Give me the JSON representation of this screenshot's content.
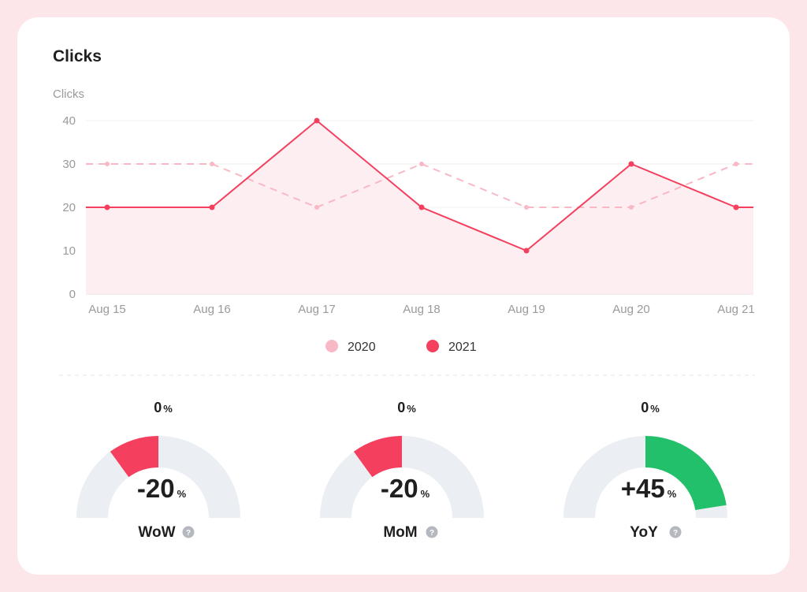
{
  "card": {
    "title": "Clicks"
  },
  "chart_data": {
    "type": "line",
    "ylabel": "Clicks",
    "categories": [
      "Aug 15",
      "Aug 16",
      "Aug 17",
      "Aug 18",
      "Aug 19",
      "Aug 20",
      "Aug 21"
    ],
    "yticks": [
      0,
      10,
      20,
      30,
      40
    ],
    "ylim": [
      0,
      40
    ],
    "grid": true,
    "legend_position": "bottom-center",
    "series": [
      {
        "name": "2020",
        "values": [
          30,
          30,
          20,
          30,
          20,
          20,
          30
        ],
        "style": "dashed",
        "color": "#f9b8c5"
      },
      {
        "name": "2021",
        "values": [
          20,
          20,
          40,
          20,
          10,
          30,
          20
        ],
        "style": "solid",
        "color": "#f43f5e",
        "fill": "#fdeef1"
      }
    ]
  },
  "gauges": [
    {
      "label": "WoW",
      "value": "-20",
      "unit": "%",
      "start_value": "0",
      "start_unit": "%",
      "fraction": -0.2,
      "color": "#f43f5e",
      "help_icon": "help-circle-icon"
    },
    {
      "label": "MoM",
      "value": "-20",
      "unit": "%",
      "start_value": "0",
      "start_unit": "%",
      "fraction": -0.2,
      "color": "#f43f5e",
      "help_icon": "help-circle-icon"
    },
    {
      "label": "YoY",
      "value": "+45",
      "unit": "%",
      "start_value": "0",
      "start_unit": "%",
      "fraction": 0.45,
      "color": "#22c06b",
      "help_icon": "help-circle-icon"
    }
  ],
  "colors": {
    "track": "#ebeef2",
    "help": "#b5b8bf",
    "grid": "#efefef",
    "axis_text": "#9a9a9a"
  }
}
